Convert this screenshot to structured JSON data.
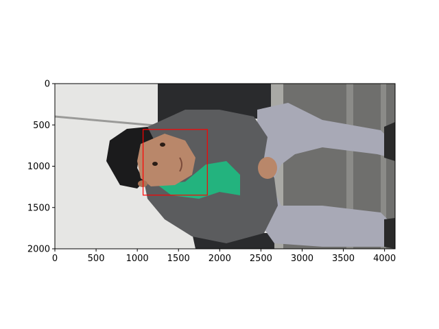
{
  "figure": {
    "x_ticks": [
      0,
      500,
      1000,
      1500,
      2000,
      2500,
      3000,
      3500,
      4000
    ],
    "y_ticks": [
      0,
      500,
      1000,
      1500,
      2000
    ],
    "x_range": [
      0,
      4128
    ],
    "y_range": [
      2000,
      0
    ],
    "bbox": {
      "x1": 1070,
      "y1": 555,
      "x2": 1850,
      "y2": 1350,
      "color": "#ff0000"
    }
  },
  "photo": {
    "description": "boy in grey hoodie with green scarf sitting on stone steps, rotated 90 degrees",
    "colors": {
      "wall": "#e6e6e4",
      "steps": "#6f6f6d",
      "step_edge": "#a9a9a5",
      "backpack": "#2a2b2d",
      "hoodie": "#5b5c5e",
      "pants": "#a8a9b6",
      "skin": "#b9876a",
      "hair": "#1b1b1c",
      "scarf": "#23b37e",
      "shoe": "#2a2a2a"
    }
  }
}
